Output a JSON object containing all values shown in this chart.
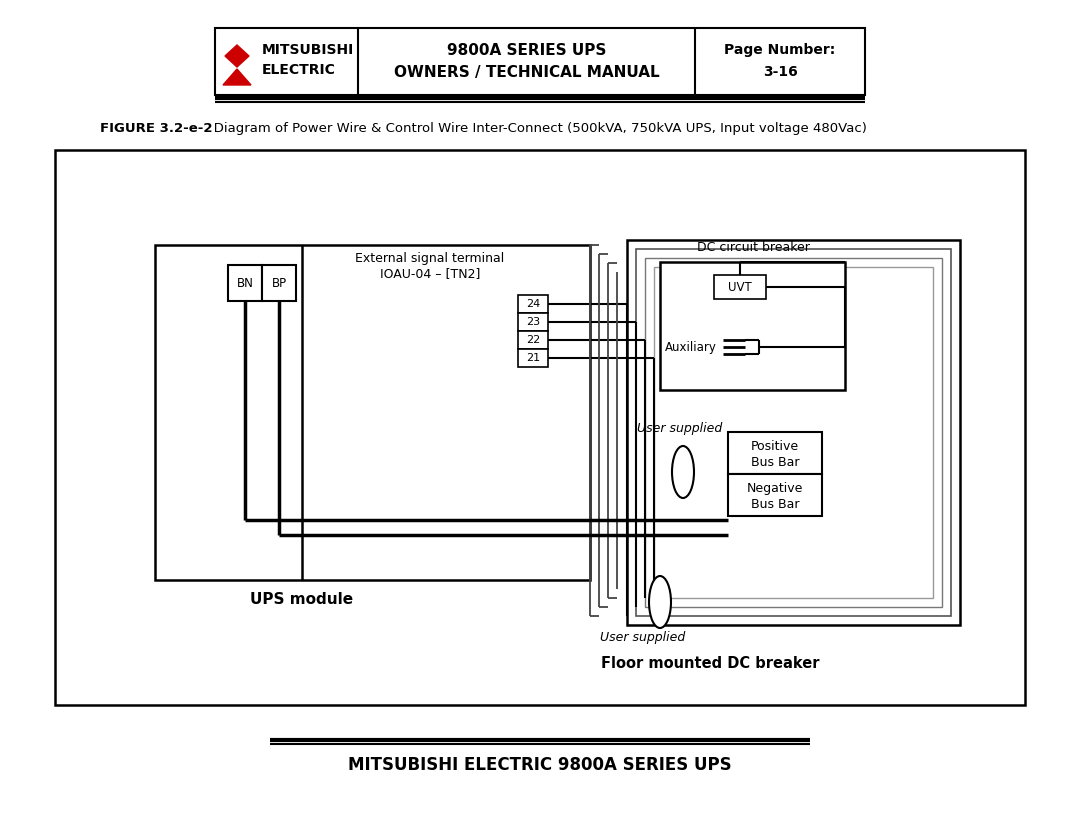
{
  "bg_color": "#ffffff",
  "header_left1": "MITSUBISHI",
  "header_left2": "ELECTRIC",
  "header_center1": "9800A SERIES UPS",
  "header_center2": "OWNERS / TECHNICAL MANUAL",
  "header_right1": "Page Number:",
  "header_right2": "3-16",
  "fig_caption_bold": "FIGURE 3.2-e-2",
  "fig_caption_normal": "   Diagram of Power Wire & Control Wire Inter-Connect (500kVA, 750kVA UPS, Input voltage 480Vac)",
  "ext_signal1": "External signal terminal",
  "ext_signal2": "IOAU-04 – [TN2]",
  "terminal_nums": [
    "24",
    "23",
    "22",
    "21"
  ],
  "bn_label": "BN",
  "bp_label": "BP",
  "dc_label": "DC circuit breaker",
  "uvt_label": "UVT",
  "aux_label": "Auxiliary",
  "user_supplied": "User supplied",
  "pos_bus1": "Positive",
  "pos_bus2": "Bus Bar",
  "neg_bus1": "Negative",
  "neg_bus2": "Bus Bar",
  "ups_label": "UPS module",
  "floor_dc_label": "Floor mounted DC breaker",
  "footer_text": "MITSUBISHI ELECTRIC 9800A SERIES UPS",
  "logo_color": "#cc0000"
}
